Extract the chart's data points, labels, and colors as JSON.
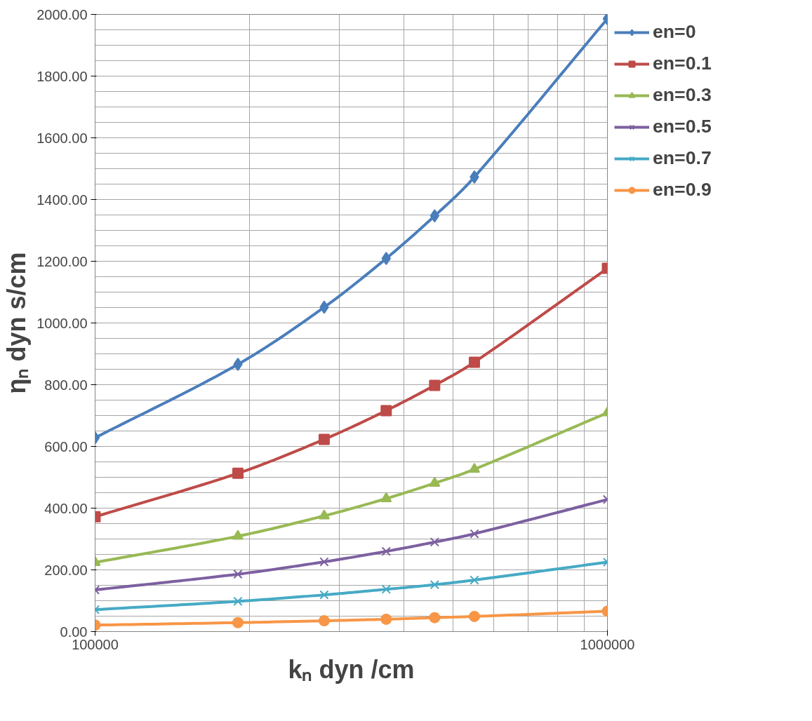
{
  "chart_data": {
    "type": "line",
    "xlabel": "kₙ dyn /cm",
    "ylabel": "ηₙ dyn s/cm",
    "log": "x",
    "x": [
      100000,
      190000,
      280000,
      370000,
      460000,
      550000,
      1000000
    ],
    "xlim": [
      100000,
      1000000
    ],
    "xticks": [
      100000,
      1000000
    ],
    "ylim": [
      0,
      2000
    ],
    "yticks": [
      {
        "value": 0,
        "label": "0.00"
      },
      {
        "value": 200,
        "label": "200.00"
      },
      {
        "value": 400,
        "label": "400.00"
      },
      {
        "value": 600,
        "label": "600.00"
      },
      {
        "value": 800,
        "label": "800.00"
      },
      {
        "value": 1000,
        "label": "1000.00"
      },
      {
        "value": 1200,
        "label": "1200.00"
      },
      {
        "value": 1400,
        "label": "1400.00"
      },
      {
        "value": 1600,
        "label": "1600.00"
      },
      {
        "value": 1800,
        "label": "1800.00"
      },
      {
        "value": 2000,
        "label": "2000.00"
      }
    ],
    "grid": true,
    "legend": "top right",
    "line_style": "solid",
    "series": [
      {
        "name": "en=0",
        "color": "#4a7ebb",
        "marker": "diamond",
        "values": [
          628,
          866,
          1051,
          1209,
          1347,
          1473,
          1986
        ]
      },
      {
        "name": "en=0.1",
        "color": "#be4b48",
        "marker": "square",
        "values": [
          372,
          513,
          623,
          716,
          798,
          873,
          1177
        ]
      },
      {
        "name": "en=0.3",
        "color": "#98b954",
        "marker": "triangle",
        "values": [
          224,
          309,
          375,
          431,
          481,
          526,
          709
        ]
      },
      {
        "name": "en=0.5",
        "color": "#7d60a0",
        "marker": "cross",
        "values": [
          135,
          186,
          226,
          260,
          290,
          317,
          428
        ]
      },
      {
        "name": "en=0.7",
        "color": "#46aac5",
        "marker": "cross",
        "values": [
          71,
          98,
          119,
          137,
          152,
          167,
          225
        ]
      },
      {
        "name": "en=0.9",
        "color": "#f79646",
        "marker": "circle",
        "values": [
          21,
          29,
          35,
          40,
          45,
          49,
          66
        ]
      }
    ]
  }
}
